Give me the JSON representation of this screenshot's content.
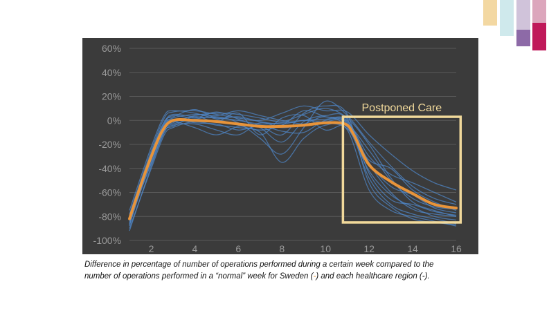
{
  "colors": {
    "panel_bg": "#3b3b3b",
    "sweden": "#e8943a",
    "regions": "#4f86c6",
    "box": "#f1d99b",
    "deco": [
      "#f3d8a2",
      "#cfe9ec",
      "#d0c3da",
      "#dca6bc",
      "#8d6aa7",
      "#c0195a"
    ]
  },
  "chart_data": {
    "type": "line",
    "title": "",
    "xlabel": "",
    "ylabel": "",
    "xlim": [
      1,
      16
    ],
    "ylim": [
      -100,
      60
    ],
    "x_ticks": [
      2,
      4,
      6,
      8,
      10,
      12,
      14,
      16
    ],
    "y_ticks": [
      60,
      40,
      20,
      0,
      -20,
      -40,
      -60,
      -80,
      -100
    ],
    "y_tick_labels": [
      "60%",
      "40%",
      "20%",
      "0%",
      "-20%",
      "-40%",
      "-60%",
      "-80%",
      "-100%"
    ],
    "series": [
      {
        "name": "Sweden",
        "x": [
          1,
          1.5,
          2,
          2.5,
          3,
          4,
          5,
          6,
          7,
          8,
          9,
          10,
          10.9,
          11.3,
          12,
          13,
          14,
          15,
          16
        ],
        "values": [
          -82,
          -55,
          -30,
          -9,
          0,
          0,
          -1,
          -3,
          -5,
          -5,
          -4,
          -2,
          -3,
          -12,
          -37,
          -51,
          -61,
          -70,
          -73
        ]
      },
      {
        "name": "Healthcare regions",
        "lines": [
          {
            "x": [
              1,
              2,
              2.6,
              3,
              4,
              5,
              6,
              7,
              8,
              9,
              10,
              11,
              12,
              13,
              14,
              15,
              16
            ],
            "values": [
              -88,
              -28,
              -2,
              5,
              3,
              2,
              0,
              -3,
              -2,
              0,
              1,
              0,
              -35,
              -55,
              -62,
              -73,
              -77
            ]
          },
          {
            "x": [
              1,
              2,
              2.6,
              3,
              4,
              5,
              6,
              7,
              8,
              9,
              10,
              11,
              12,
              13,
              14,
              15,
              16
            ],
            "values": [
              -80,
              -32,
              -6,
              -2,
              4,
              6,
              5,
              2,
              -1,
              5,
              10,
              2,
              -20,
              -48,
              -68,
              -75,
              -80
            ]
          },
          {
            "x": [
              1,
              2,
              2.6,
              3,
              4,
              5,
              6,
              7,
              8,
              9,
              10,
              11,
              12,
              13,
              14,
              15,
              16
            ],
            "values": [
              -92,
              -38,
              -10,
              -4,
              -3,
              -8,
              -12,
              -2,
              -6,
              -3,
              3,
              -6,
              -42,
              -62,
              -72,
              -80,
              -83
            ]
          },
          {
            "x": [
              1,
              2,
              2.6,
              3,
              4,
              5,
              6,
              7,
              8,
              9,
              10,
              11,
              12,
              13,
              14,
              15,
              16
            ],
            "values": [
              -75,
              -22,
              4,
              8,
              6,
              1,
              -4,
              -8,
              -4,
              8,
              3,
              -1,
              -30,
              -45,
              -52,
              -60,
              -68
            ]
          },
          {
            "x": [
              1,
              2,
              2.6,
              3,
              4,
              5,
              6,
              7,
              8,
              9,
              10,
              11,
              12,
              13,
              14,
              15,
              16
            ],
            "values": [
              -85,
              -35,
              -8,
              -3,
              1,
              3,
              -2,
              -15,
              -28,
              -6,
              16,
              4,
              -18,
              -38,
              -55,
              -65,
              -70
            ]
          },
          {
            "x": [
              1,
              2,
              2.6,
              3,
              4,
              5,
              6,
              7,
              8,
              9,
              10,
              11,
              12,
              13,
              14,
              15,
              16
            ],
            "values": [
              -82,
              -30,
              -4,
              2,
              5,
              4,
              8,
              4,
              0,
              -3,
              -1,
              -3,
              -48,
              -70,
              -78,
              -82,
              -86
            ]
          },
          {
            "x": [
              1,
              2,
              2.6,
              3,
              4,
              5,
              6,
              7,
              8,
              9,
              10,
              11,
              12,
              13,
              14,
              15,
              16
            ],
            "values": [
              -90,
              -40,
              -12,
              -6,
              -1,
              -4,
              -6,
              -10,
              -35,
              -15,
              -4,
              -8,
              -58,
              -75,
              -80,
              -84,
              -88
            ]
          },
          {
            "x": [
              1,
              2,
              2.6,
              3,
              4,
              5,
              6,
              7,
              8,
              9,
              10,
              11,
              12,
              13,
              14,
              15,
              16
            ],
            "values": [
              -78,
              -25,
              2,
              7,
              8,
              5,
              2,
              0,
              6,
              12,
              8,
              7,
              -12,
              -28,
              -42,
              -52,
              -58
            ]
          },
          {
            "x": [
              1,
              2,
              2.6,
              3,
              4,
              5,
              6,
              7,
              8,
              9,
              10,
              11,
              12,
              13,
              14,
              15,
              16
            ],
            "values": [
              -86,
              -33,
              -7,
              -1,
              -6,
              -12,
              -5,
              -4,
              -9,
              -10,
              0,
              -2,
              -36,
              -60,
              -74,
              -78,
              -80
            ]
          },
          {
            "x": [
              1,
              2,
              2.6,
              3,
              4,
              5,
              6,
              7,
              8,
              9,
              10,
              11,
              12,
              13,
              14,
              15,
              16
            ],
            "values": [
              -84,
              -29,
              -3,
              4,
              2,
              7,
              1,
              -6,
              -18,
              -1,
              4,
              1,
              -44,
              -66,
              -70,
              -76,
              -79
            ]
          },
          {
            "x": [
              1,
              2,
              2.6,
              3,
              4,
              5,
              6,
              7,
              8,
              9,
              10,
              11,
              12,
              13,
              14,
              15,
              16
            ],
            "values": [
              -81,
              -36,
              -9,
              -5,
              3,
              -1,
              6,
              -12,
              2,
              4,
              -8,
              -4,
              -25,
              -50,
              -65,
              -72,
              -74
            ]
          },
          {
            "x": [
              1,
              2,
              2.6,
              3,
              4,
              5,
              6,
              7,
              8,
              9,
              10,
              11,
              12,
              13,
              14,
              15,
              16
            ],
            "values": [
              -87,
              -31,
              -5,
              1,
              -2,
              -3,
              -8,
              -5,
              -12,
              6,
              12,
              5,
              -52,
              -72,
              -82,
              -85,
              -87
            ]
          },
          {
            "x": [
              1,
              2,
              2.6,
              3,
              4,
              5,
              6,
              7,
              8,
              9,
              10,
              11,
              12,
              13,
              14,
              15,
              16
            ],
            "values": [
              -79,
              -27,
              -1,
              3,
              9,
              2,
              3,
              -1,
              -3,
              0,
              -2,
              -7,
              -33,
              -40,
              -58,
              -68,
              -75
            ]
          }
        ]
      }
    ],
    "annotations": [
      {
        "text": "Postponed Care",
        "x_range": [
          10.8,
          16.2
        ],
        "y_range": [
          -85,
          3
        ]
      }
    ]
  },
  "caption": {
    "line1": "Difference in percentage of number of operations performed during a certain week compared to the",
    "line2_a": "number of operations performed in a “normal” week for Sweden (",
    "line2_b": "-",
    "line2_c": ") and each healthcare region (-)."
  }
}
